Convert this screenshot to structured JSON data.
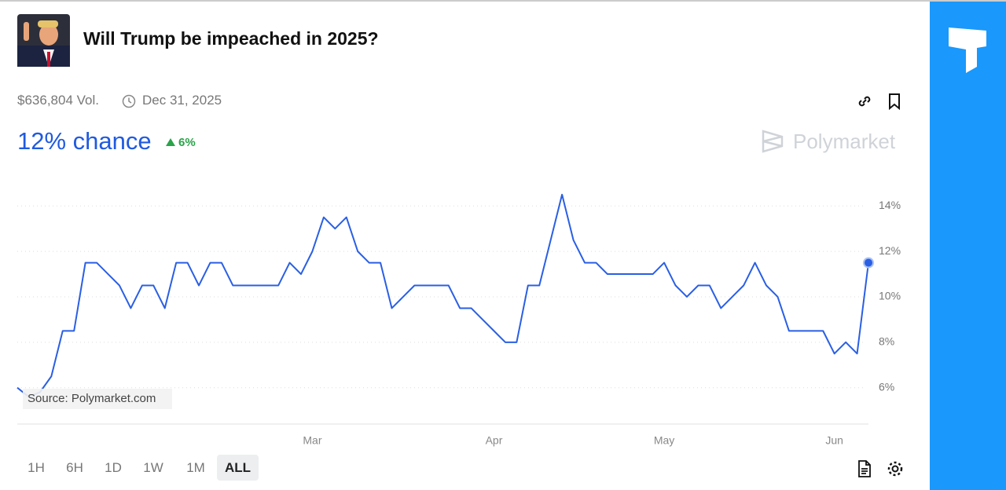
{
  "header": {
    "title": "Will Trump be impeached in 2025?",
    "volume": "$636,804 Vol.",
    "end_date": "Dec 31, 2025",
    "chance": "12% chance",
    "change": "6%",
    "brand": "Polymarket"
  },
  "controls": {
    "ranges": [
      "1H",
      "6H",
      "1D",
      "1W",
      "1M",
      "ALL"
    ],
    "active": "ALL"
  },
  "chart_data": {
    "type": "line",
    "source_note": "Source: Polymarket.com",
    "color": "#2a5fe4",
    "grid": true,
    "categories": [
      null,
      null,
      null,
      null,
      null,
      null,
      null,
      null,
      null,
      null,
      null,
      null,
      null,
      null,
      null,
      null,
      null,
      null,
      null,
      null,
      null,
      null,
      null,
      null,
      null,
      null,
      "Mar",
      null,
      null,
      null,
      null,
      null,
      null,
      null,
      null,
      null,
      null,
      null,
      null,
      null,
      null,
      null,
      "Apr",
      null,
      null,
      null,
      null,
      null,
      null,
      null,
      null,
      null,
      null,
      null,
      null,
      null,
      null,
      "May",
      null,
      null,
      null,
      null,
      null,
      null,
      null,
      null,
      null,
      null,
      null,
      null,
      null,
      null,
      "Jun",
      null,
      null,
      null
    ],
    "values": [
      6,
      5.6,
      5.8,
      6.5,
      8.5,
      8.5,
      11.5,
      11.5,
      11,
      10.5,
      9.5,
      10.5,
      10.5,
      9.5,
      11.5,
      11.5,
      10.5,
      11.5,
      11.5,
      10.5,
      10.5,
      10.5,
      10.5,
      10.5,
      11.5,
      11,
      12,
      13.5,
      13,
      13.5,
      12,
      11.5,
      11.5,
      9.5,
      10,
      10.5,
      10.5,
      10.5,
      10.5,
      9.5,
      9.5,
      9,
      8.5,
      8,
      8,
      10.5,
      10.5,
      12.5,
      14.5,
      12.5,
      11.5,
      11.5,
      11,
      11,
      11,
      11,
      11,
      11.5,
      10.5,
      10,
      10.5,
      10.5,
      9.5,
      10,
      10.5,
      11.5,
      10.5,
      10,
      8.5,
      8.5,
      8.5,
      8.5,
      7.5,
      8,
      7.5,
      11.5
    ],
    "ylim": [
      4.4,
      14.7
    ],
    "yticks": [
      {
        "value": 6,
        "label": "6%"
      },
      {
        "value": 8,
        "label": "8%"
      },
      {
        "value": 10,
        "label": "10%"
      },
      {
        "value": 12,
        "label": "12%"
      },
      {
        "value": 14,
        "label": "14%"
      }
    ]
  }
}
